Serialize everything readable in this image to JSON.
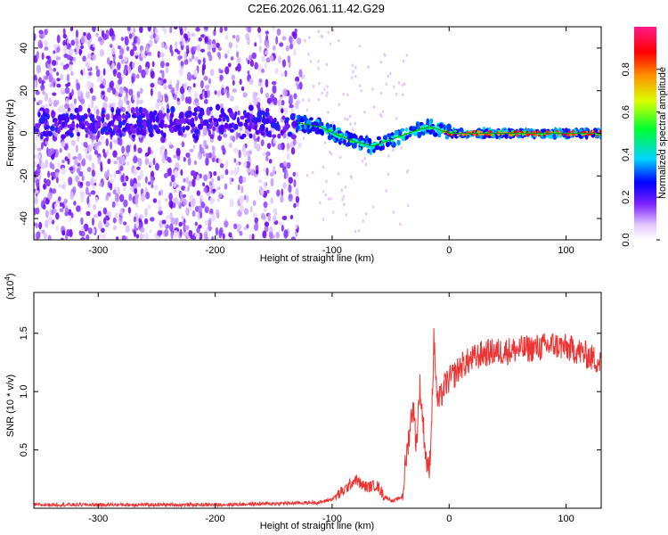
{
  "title": "C2E6.2026.061.11.42.G29",
  "chart_data": [
    {
      "type": "heatmap",
      "name": "spectrogram",
      "xlabel": "Height of straight line (km)",
      "ylabel": "Frequency (Hz)",
      "xlim": [
        -355,
        130
      ],
      "ylim": [
        -50,
        50
      ],
      "xticks": [
        -300,
        -200,
        -100,
        0,
        100
      ],
      "yticks": [
        -40,
        -20,
        0,
        20,
        40
      ],
      "ridge": {
        "x": [
          -130,
          -110,
          -95,
          -80,
          -65,
          -55,
          -45,
          -35,
          -25,
          -15,
          -5,
          0,
          30,
          60,
          90,
          120,
          130
        ],
        "y": [
          5,
          3,
          -1,
          -4,
          -6,
          -4,
          -2,
          0,
          2,
          3,
          1,
          0,
          0,
          0,
          0,
          0,
          0
        ]
      },
      "colorbar": {
        "label": "Normalized spectral amplitude",
        "range": [
          0,
          1
        ],
        "ticks": [
          0.0,
          0.2,
          0.4,
          0.6,
          0.8
        ],
        "tick_labels": [
          "0.0",
          "0.2",
          "0.4",
          "0.6",
          "0.8"
        ]
      }
    },
    {
      "type": "line",
      "name": "snr",
      "xlabel": "Height of straight line (km)",
      "ylabel": "SNR (10 * v/v)",
      "scale_note": "(x10",
      "scale_exp": "4",
      "xlim": [
        -355,
        130
      ],
      "ylim": [
        0,
        1.85
      ],
      "xticks": [
        -300,
        -200,
        -100,
        0,
        100
      ],
      "yticks": [
        0.5,
        1.0,
        1.5
      ],
      "ytick_labels": [
        "0.5",
        "1.0",
        "1.5"
      ],
      "color": "#ee3333",
      "x": [
        -355,
        -300,
        -200,
        -150,
        -110,
        -100,
        -90,
        -80,
        -75,
        -70,
        -62,
        -55,
        -48,
        -40,
        -37,
        -34,
        -31,
        -28,
        -25,
        -22,
        -20,
        -17,
        -15,
        -13,
        -10,
        -7,
        -4,
        0,
        5,
        10,
        20,
        30,
        50,
        70,
        90,
        110,
        120,
        130
      ],
      "y": [
        0.03,
        0.03,
        0.03,
        0.04,
        0.05,
        0.08,
        0.15,
        0.25,
        0.2,
        0.18,
        0.2,
        0.1,
        0.06,
        0.1,
        0.4,
        0.65,
        0.9,
        0.55,
        1.05,
        0.7,
        0.45,
        0.3,
        0.75,
        1.45,
        0.9,
        0.95,
        1.05,
        1.1,
        1.15,
        1.22,
        1.28,
        1.33,
        1.35,
        1.37,
        1.4,
        1.35,
        1.3,
        1.25
      ]
    }
  ]
}
